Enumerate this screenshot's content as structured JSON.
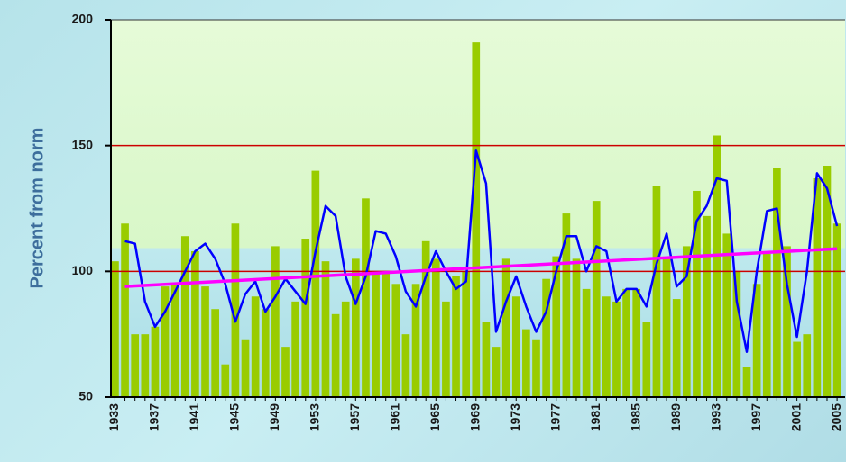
{
  "chart_data": {
    "type": "bar",
    "y_label": "Percent from norm",
    "x": [
      1933,
      1934,
      1935,
      1936,
      1937,
      1938,
      1939,
      1940,
      1941,
      1942,
      1943,
      1944,
      1945,
      1946,
      1947,
      1948,
      1949,
      1950,
      1951,
      1952,
      1953,
      1954,
      1955,
      1956,
      1957,
      1958,
      1959,
      1960,
      1961,
      1962,
      1963,
      1964,
      1965,
      1966,
      1967,
      1968,
      1969,
      1970,
      1971,
      1972,
      1973,
      1974,
      1975,
      1976,
      1977,
      1978,
      1979,
      1980,
      1981,
      1982,
      1983,
      1984,
      1985,
      1986,
      1987,
      1988,
      1989,
      1990,
      1991,
      1992,
      1993,
      1994,
      1995,
      1996,
      1997,
      1998,
      1999,
      2000,
      2001,
      2002,
      2003,
      2004,
      2005
    ],
    "values": [
      104,
      119,
      75,
      75,
      78,
      94,
      95,
      114,
      108,
      94,
      85,
      63,
      119,
      73,
      90,
      85,
      110,
      70,
      88,
      113,
      140,
      104,
      83,
      88,
      105,
      129,
      100,
      100,
      95,
      75,
      95,
      112,
      105,
      88,
      98,
      100,
      191,
      80,
      70,
      105,
      90,
      77,
      73,
      97,
      106,
      123,
      105,
      93,
      128,
      90,
      88,
      93,
      93,
      80,
      134,
      105,
      89,
      110,
      132,
      122,
      154,
      115,
      100,
      62,
      95,
      107,
      141,
      110,
      72,
      75,
      137,
      142,
      119
    ],
    "color": "#99cc00",
    "lines": [
      {
        "color": "#0000ff",
        "values": [
          null,
          112,
          111,
          88,
          78,
          84,
          92,
          100,
          108,
          111,
          105,
          95,
          80,
          91,
          96,
          84,
          90,
          97,
          92,
          87,
          108,
          126,
          122,
          98,
          87,
          98,
          116,
          115,
          106,
          92,
          86,
          98,
          108,
          100,
          93,
          96,
          148,
          135,
          76,
          88,
          98,
          86,
          76,
          84,
          100,
          114,
          114,
          100,
          110,
          108,
          88,
          93,
          93,
          86,
          103,
          115,
          94,
          98,
          120,
          126,
          137,
          136,
          88,
          68,
          100,
          124,
          125,
          95,
          74,
          100,
          139,
          133,
          118
        ]
      }
    ],
    "trend": {
      "x": [
        1934,
        2005
      ],
      "values": [
        94,
        109
      ],
      "color": "#ff00ff"
    },
    "hlines": [
      100,
      150
    ],
    "hline_color": "#cc0000",
    "xlim": [
      1932.6,
      2005.8
    ],
    "xticks": [
      1933,
      1937,
      1941,
      1945,
      1949,
      1953,
      1957,
      1961,
      1965,
      1969,
      1973,
      1977,
      1981,
      1985,
      1989,
      1993,
      1997,
      2001,
      2005
    ],
    "ylim": [
      50,
      200
    ],
    "yticks": [
      50,
      100,
      150,
      200
    ]
  }
}
